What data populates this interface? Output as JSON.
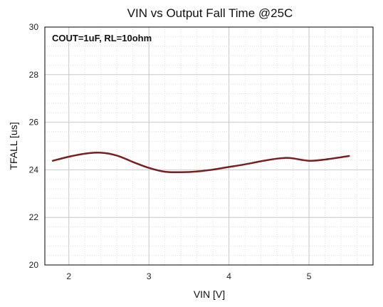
{
  "chart_data": {
    "type": "line",
    "title": "VIN vs Output Fall Time @25C",
    "xlabel": "VIN [V]",
    "ylabel": "TFALL [us]",
    "annotation": "COUT=1uF, RL=10ohm",
    "xlim": [
      1.7,
      5.8
    ],
    "ylim": [
      20,
      30
    ],
    "xticks": [
      2,
      3,
      4,
      5
    ],
    "yticks": [
      20,
      22,
      24,
      26,
      28,
      30
    ],
    "grid": true,
    "minor_grid": true,
    "colors": {
      "line": "#7a1f1f",
      "grid_major": "#c8c8c8",
      "grid_minor": "#e2e2e2",
      "frame": "#000000"
    },
    "series": [
      {
        "x": [
          1.8,
          2.0,
          2.2,
          2.4,
          2.6,
          2.8,
          3.0,
          3.2,
          3.4,
          3.6,
          3.8,
          4.0,
          4.2,
          4.4,
          4.6,
          4.7,
          4.8,
          5.0,
          5.2,
          5.5
        ],
        "y": [
          24.38,
          24.55,
          24.68,
          24.72,
          24.6,
          24.33,
          24.08,
          23.92,
          23.9,
          23.93,
          24.01,
          24.12,
          24.23,
          24.36,
          24.47,
          24.5,
          24.48,
          24.38,
          24.43,
          24.58
        ]
      }
    ]
  }
}
